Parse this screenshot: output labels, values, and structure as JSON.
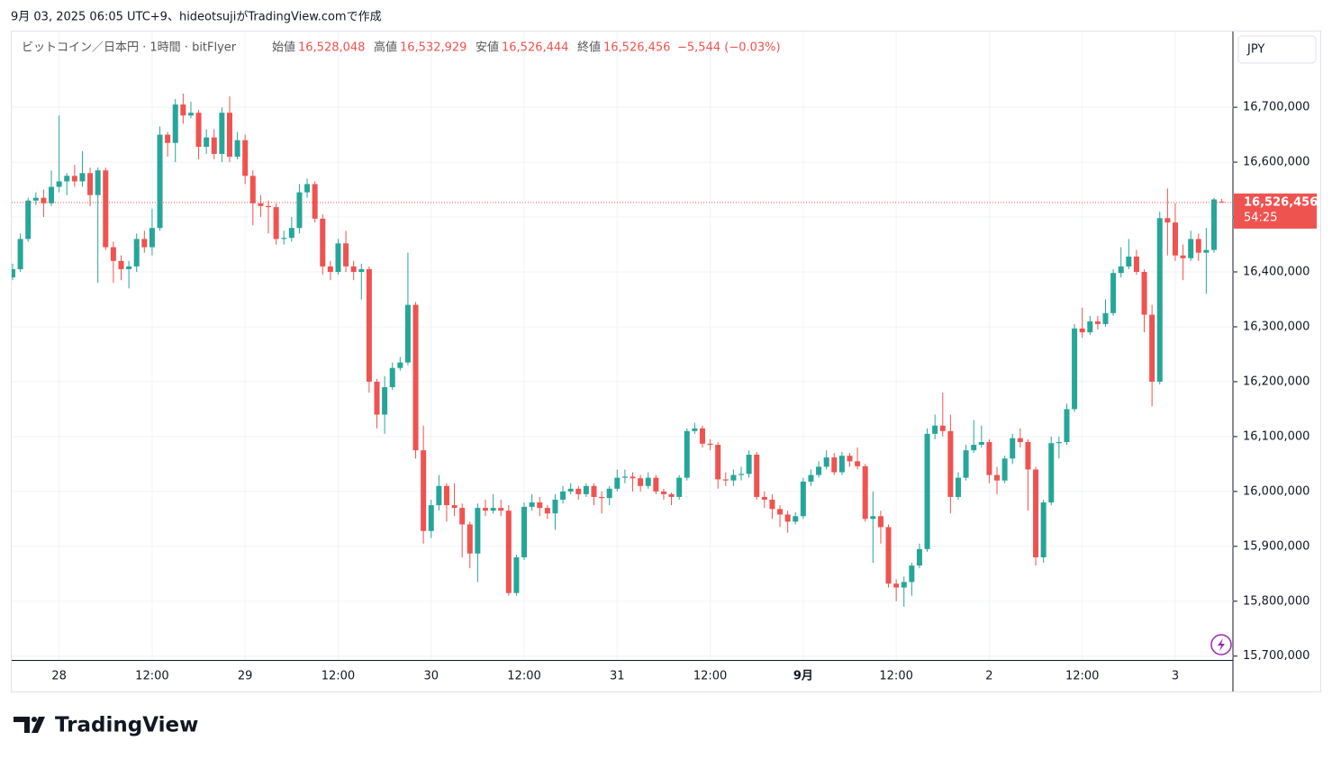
{
  "chart_data": {
    "type": "candlestick",
    "title": "9月 03, 2025 06:05 UTC+9、hideotsujiがTradingView.comで作成",
    "legend_title": "ビットコイン／日本円 · 1時間 · bitFlyer",
    "ohlc_labels": [
      {
        "name": "始値",
        "value": "16,528,048"
      },
      {
        "name": "高値",
        "value": "16,532,929"
      },
      {
        "name": "安値",
        "value": "16,526,444"
      },
      {
        "name": "終値",
        "value": "16,526,456"
      }
    ],
    "change": "−5,544 (−0.03%)",
    "currency": "JPY",
    "brand": "TradingView",
    "last_price": {
      "value": 16526456,
      "label": "16,526,456"
    },
    "countdown": "54:25",
    "up_color": "#26a69a",
    "down_color": "#ef5350",
    "grid": true,
    "categories": [
      null,
      null,
      null,
      null,
      null,
      null,
      "28",
      null,
      null,
      null,
      null,
      null,
      null,
      null,
      null,
      null,
      null,
      null,
      "12:00",
      null,
      null,
      null,
      null,
      null,
      null,
      null,
      null,
      null,
      null,
      null,
      "29",
      null,
      null,
      null,
      null,
      null,
      null,
      null,
      null,
      null,
      null,
      null,
      "12:00",
      null,
      null,
      null,
      null,
      null,
      null,
      null,
      null,
      null,
      null,
      null,
      "30",
      null,
      null,
      null,
      null,
      null,
      null,
      null,
      null,
      null,
      null,
      null,
      "12:00",
      null,
      null,
      null,
      null,
      null,
      null,
      null,
      null,
      null,
      null,
      null,
      "31",
      null,
      null,
      null,
      null,
      null,
      null,
      null,
      null,
      null,
      null,
      null,
      "12:00",
      null,
      null,
      null,
      null,
      null,
      null,
      null,
      null,
      null,
      null,
      null,
      "9月",
      null,
      null,
      null,
      null,
      null,
      null,
      null,
      null,
      null,
      null,
      null,
      "12:00",
      null,
      null,
      null,
      null,
      null,
      null,
      null,
      null,
      null,
      null,
      null,
      "2",
      null,
      null,
      null,
      null,
      null,
      null,
      null,
      null,
      null,
      null,
      null,
      "12:00",
      null,
      null,
      null,
      null,
      null,
      null,
      null,
      null,
      null,
      null,
      null,
      "3",
      null,
      null,
      null,
      null,
      null,
      null
    ],
    "open": [
      16390000,
      16405000,
      16460000,
      16530000,
      16535000,
      16525000,
      16555000,
      16565000,
      16575000,
      16565000,
      16580000,
      16540000,
      16585000,
      16445000,
      16420000,
      16405000,
      16410000,
      16460000,
      16445000,
      16480000,
      16650000,
      16635000,
      16705000,
      16685000,
      16690000,
      16628000,
      16645000,
      16615000,
      16690000,
      16610000,
      16640000,
      16575000,
      16525000,
      16520000,
      16518000,
      16460000,
      16462000,
      16480000,
      16545000,
      16560000,
      16497000,
      16410000,
      16400000,
      16452000,
      16410000,
      16400000,
      16405000,
      16200000,
      16140000,
      16190000,
      16225000,
      16235000,
      16340000,
      16075000,
      15928000,
      15975000,
      16010000,
      15975000,
      15970000,
      15940000,
      15887000,
      15970000,
      15965000,
      15970000,
      15965000,
      15815000,
      15880000,
      15972000,
      15980000,
      15970000,
      15960000,
      15985000,
      16000000,
      16005000,
      15995000,
      16010000,
      15990000,
      15988000,
      16005000,
      16025000,
      16027000,
      16024000,
      16010000,
      16025000,
      16000000,
      15995000,
      15990000,
      16025000,
      16110000,
      16115000,
      16087000,
      16085000,
      16022000,
      16020000,
      16030000,
      16032000,
      16067000,
      15990000,
      15985000,
      15968000,
      15958000,
      15945000,
      15955000,
      16018000,
      16030000,
      16045000,
      16062000,
      16035000,
      16065000,
      16055000,
      16046000,
      15950000,
      15955000,
      15935000,
      15832000,
      15825000,
      15835000,
      15865000,
      15895000,
      16105000,
      16120000,
      16110000,
      15990000,
      16025000,
      16075000,
      16085000,
      16090000,
      16030000,
      16020000,
      16060000,
      16097000,
      16090000,
      16040000,
      15880000,
      15980000,
      16088000,
      16090000,
      16150000,
      16297000,
      16290000,
      16310000,
      16305000,
      16325000,
      16398000,
      16410000,
      16428000,
      16400000,
      16322000,
      16200000,
      16498000,
      16490000,
      16430000,
      16425000,
      16460000,
      16435000,
      16440000,
      16528048
    ],
    "high": [
      16415000,
      16470000,
      16535000,
      16545000,
      16550000,
      16585000,
      16685000,
      16580000,
      16595000,
      16620000,
      16590000,
      16590000,
      16590000,
      16455000,
      16430000,
      16420000,
      16470000,
      16475000,
      16515000,
      16665000,
      16655000,
      16715000,
      16725000,
      16710000,
      16695000,
      16660000,
      16660000,
      16700000,
      16720000,
      16655000,
      16650000,
      16585000,
      16540000,
      16530000,
      16525000,
      16475000,
      16500000,
      16560000,
      16570000,
      16565000,
      16505000,
      16420000,
      16460000,
      16475000,
      16420000,
      16415000,
      16410000,
      16205000,
      16210000,
      16235000,
      16245000,
      16435000,
      16345000,
      16120000,
      15985000,
      16030000,
      16015000,
      16015000,
      15978000,
      15945000,
      15978000,
      15985000,
      15995000,
      15985000,
      15975000,
      15885000,
      15980000,
      15995000,
      15990000,
      15975000,
      15995000,
      16010000,
      16015000,
      16010000,
      16015000,
      16015000,
      16000000,
      16010000,
      16040000,
      16040000,
      16035000,
      16030000,
      16035000,
      16030000,
      16005000,
      15998000,
      16030000,
      16115000,
      16125000,
      16120000,
      16095000,
      16090000,
      16035000,
      16040000,
      16045000,
      16075000,
      16072000,
      16000000,
      15995000,
      15975000,
      15965000,
      15962000,
      16025000,
      16040000,
      16055000,
      16075000,
      16070000,
      16072000,
      16070000,
      16080000,
      16050000,
      16000000,
      15965000,
      15940000,
      15840000,
      15845000,
      15870000,
      15905000,
      16115000,
      16140000,
      16180000,
      16140000,
      16035000,
      16085000,
      16130000,
      16120000,
      16095000,
      16045000,
      16065000,
      16105000,
      16115000,
      16095000,
      16045000,
      15985000,
      16100000,
      16100000,
      16160000,
      16305000,
      16335000,
      16320000,
      16320000,
      16350000,
      16405000,
      16445000,
      16460000,
      16440000,
      16405000,
      16340000,
      16510000,
      16552000,
      16525000,
      16450000,
      16475000,
      16470000,
      16480000,
      16535000,
      16532929
    ],
    "low": [
      16385000,
      16400000,
      16455000,
      16522000,
      16500000,
      16520000,
      16545000,
      16540000,
      16555000,
      16555000,
      16520000,
      16380000,
      16440000,
      16380000,
      16385000,
      16370000,
      16400000,
      16435000,
      16430000,
      16475000,
      16610000,
      16600000,
      16670000,
      16680000,
      16605000,
      16615000,
      16605000,
      16600000,
      16600000,
      16605000,
      16560000,
      16485000,
      16500000,
      16470000,
      16450000,
      16450000,
      16455000,
      16470000,
      16535000,
      16490000,
      16395000,
      16385000,
      16395000,
      16400000,
      16385000,
      16350000,
      16180000,
      16115000,
      16105000,
      16185000,
      16220000,
      16230000,
      16060000,
      15905000,
      15915000,
      15965000,
      15945000,
      15955000,
      15880000,
      15860000,
      15835000,
      15955000,
      15960000,
      15955000,
      15810000,
      15810000,
      15875000,
      15965000,
      15955000,
      15950000,
      15930000,
      15978000,
      15995000,
      15985000,
      15990000,
      15975000,
      15960000,
      15975000,
      16000000,
      16015000,
      16000000,
      16000000,
      16005000,
      15995000,
      15985000,
      15975000,
      15985000,
      16020000,
      16105000,
      16080000,
      16075000,
      16005000,
      16010000,
      16010000,
      16020000,
      16025000,
      15985000,
      15970000,
      15950000,
      15935000,
      15925000,
      15940000,
      15950000,
      16010000,
      16025000,
      16040000,
      16030000,
      16030000,
      16045000,
      16040000,
      15945000,
      15870000,
      15905000,
      15825000,
      15800000,
      15790000,
      15810000,
      15860000,
      15890000,
      16095000,
      16100000,
      15960000,
      15985000,
      16020000,
      16070000,
      16080000,
      16015000,
      15995000,
      16015000,
      16050000,
      16080000,
      15965000,
      15865000,
      15870000,
      15975000,
      16060000,
      16085000,
      16145000,
      16280000,
      16285000,
      16295000,
      16300000,
      16320000,
      16390000,
      16405000,
      16395000,
      16290000,
      16155000,
      16195000,
      16430000,
      16420000,
      16385000,
      16420000,
      16420000,
      16360000,
      16435000,
      16526444
    ],
    "close": [
      16405000,
      16460000,
      16530000,
      16535000,
      16525000,
      16555000,
      16565000,
      16575000,
      16565000,
      16580000,
      16540000,
      16585000,
      16445000,
      16420000,
      16405000,
      16410000,
      16460000,
      16445000,
      16480000,
      16650000,
      16635000,
      16705000,
      16685000,
      16690000,
      16628000,
      16645000,
      16615000,
      16690000,
      16610000,
      16640000,
      16575000,
      16525000,
      16520000,
      16518000,
      16460000,
      16462000,
      16480000,
      16545000,
      16560000,
      16497000,
      16410000,
      16400000,
      16452000,
      16410000,
      16400000,
      16405000,
      16200000,
      16140000,
      16190000,
      16225000,
      16235000,
      16340000,
      16075000,
      15928000,
      15975000,
      16010000,
      15975000,
      15970000,
      15940000,
      15887000,
      15970000,
      15965000,
      15970000,
      15965000,
      15815000,
      15880000,
      15972000,
      15980000,
      15970000,
      15960000,
      15985000,
      16000000,
      16005000,
      15995000,
      16010000,
      15990000,
      15988000,
      16005000,
      16025000,
      16027000,
      16024000,
      16010000,
      16025000,
      16000000,
      15995000,
      15990000,
      16025000,
      16110000,
      16115000,
      16087000,
      16085000,
      16022000,
      16020000,
      16030000,
      16032000,
      16067000,
      15990000,
      15985000,
      15968000,
      15958000,
      15945000,
      15955000,
      16018000,
      16030000,
      16045000,
      16062000,
      16035000,
      16065000,
      16055000,
      16046000,
      15950000,
      15955000,
      15935000,
      15832000,
      15825000,
      15835000,
      15865000,
      15895000,
      16105000,
      16120000,
      16110000,
      15990000,
      16025000,
      16075000,
      16085000,
      16090000,
      16030000,
      16020000,
      16060000,
      16097000,
      16090000,
      16040000,
      15880000,
      15980000,
      16088000,
      16090000,
      16150000,
      16297000,
      16290000,
      16310000,
      16305000,
      16325000,
      16398000,
      16410000,
      16428000,
      16400000,
      16322000,
      16200000,
      16498000,
      16490000,
      16430000,
      16425000,
      16460000,
      16435000,
      16440000,
      16532000,
      16526456
    ],
    "ylim": [
      15693000,
      16838000
    ],
    "yticks": [
      {
        "value": 15700000,
        "label": "15,700,000"
      },
      {
        "value": 15800000,
        "label": "15,800,000"
      },
      {
        "value": 15900000,
        "label": "15,900,000"
      },
      {
        "value": 16000000,
        "label": "16,000,000"
      },
      {
        "value": 16100000,
        "label": "16,100,000"
      },
      {
        "value": 16200000,
        "label": "16,200,000"
      },
      {
        "value": 16300000,
        "label": "16,300,000"
      },
      {
        "value": 16400000,
        "label": "16,400,000"
      },
      {
        "value": 16500000,
        "label": "16,500,000"
      },
      {
        "value": 16600000,
        "label": "16,600,000"
      },
      {
        "value": 16700000,
        "label": "16,700,000"
      }
    ]
  }
}
